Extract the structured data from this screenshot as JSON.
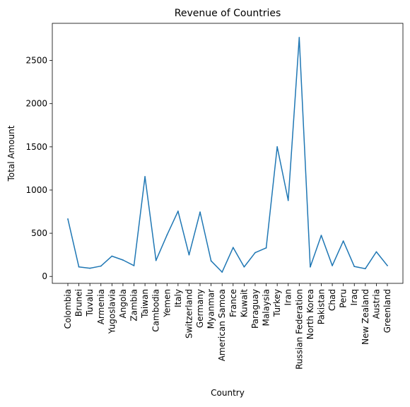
{
  "chart_data": {
    "type": "line",
    "title": "Revenue of Countries",
    "xlabel": "Country",
    "ylabel": "Total Amount",
    "ylim": [
      -80,
      2930
    ],
    "yticks": [
      0,
      500,
      1000,
      1500,
      2000,
      2500
    ],
    "grid": false,
    "categories": [
      "Colombia",
      "Brunei",
      "Tuvalu",
      "Armenia",
      "Yugoslavia",
      "Angola",
      "Zambia",
      "Taiwan",
      "Cambodia",
      "Yemen",
      "Italy",
      "Switzerland",
      "Germany",
      "Myanmar",
      "American Samoa",
      "France",
      "Kuwait",
      "Paraguay",
      "Malaysia",
      "Turkey",
      "Iran",
      "Russian Federation",
      "North Korea",
      "Pakistan",
      "Chad",
      "Peru",
      "Iraq",
      "New Zealand",
      "Austria",
      "Greenland"
    ],
    "series": [
      {
        "color": "#1f77b4",
        "values": [
          665,
          110,
          95,
          120,
          235,
          190,
          125,
          1155,
          185,
          480,
          755,
          250,
          745,
          180,
          50,
          335,
          110,
          275,
          330,
          1500,
          880,
          2765,
          110,
          475,
          125,
          410,
          115,
          90,
          285,
          125
        ]
      }
    ]
  }
}
